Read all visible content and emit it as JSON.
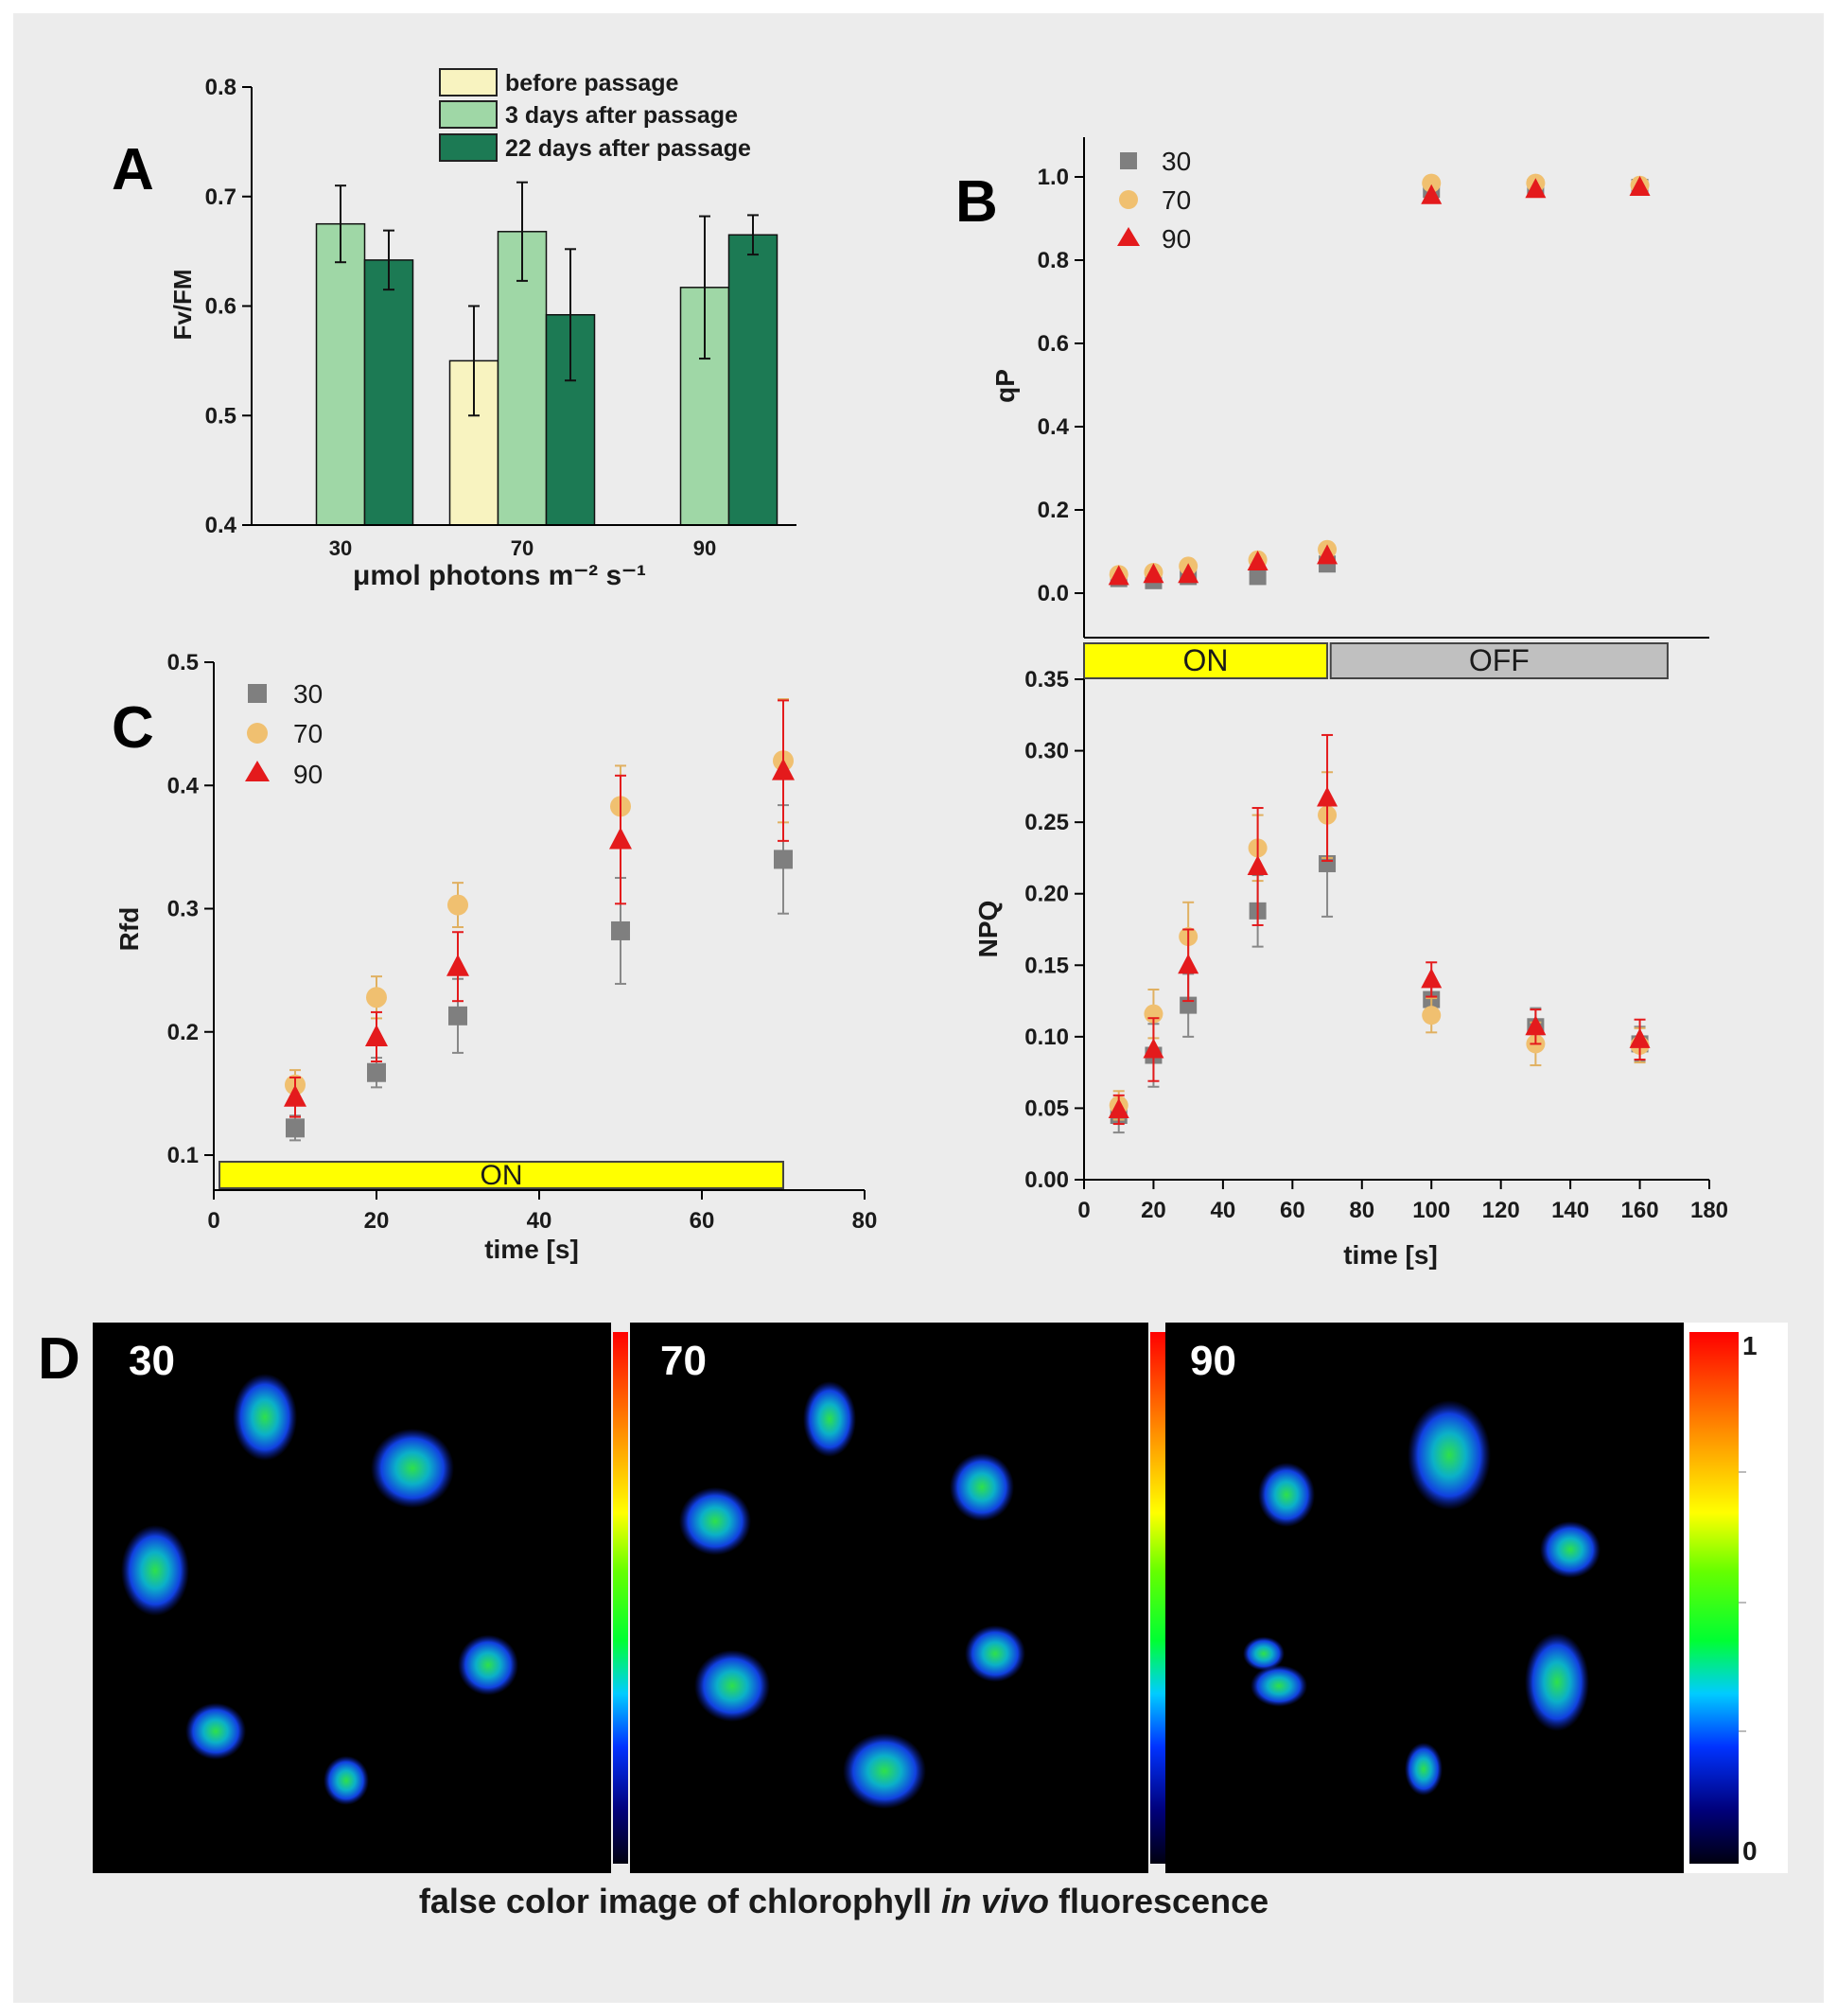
{
  "panel_labels": {
    "a": "A",
    "b": "B",
    "c": "C",
    "d": "D"
  },
  "colors": {
    "before": "#f8f3c0",
    "after3": "#9fd7a6",
    "after22": "#1c7a54",
    "s30": "#7f7f7f",
    "s70": "#f0c070",
    "s90": "#e41a1c",
    "on_bar": "#ffff00",
    "off_bar": "#c0c0c0"
  },
  "chart_data": [
    {
      "id": "A",
      "type": "bar",
      "categories": [
        "30",
        "70",
        "90"
      ],
      "series": [
        {
          "name": "before passage",
          "values": [
            null,
            0.55,
            null
          ],
          "errors": [
            null,
            0.05,
            null
          ]
        },
        {
          "name": "3 days after passage",
          "values": [
            0.675,
            0.668,
            0.617
          ],
          "errors": [
            0.035,
            0.045,
            0.065
          ]
        },
        {
          "name": "22 days after passage",
          "values": [
            0.642,
            0.592,
            0.665
          ],
          "errors": [
            0.027,
            0.06,
            0.018
          ]
        }
      ],
      "ylabel": "Fv/FM",
      "xlabel": "μmol photons m⁻² s⁻¹",
      "ylim": [
        0.4,
        0.8
      ],
      "yticks": [
        "0.4",
        "0.5",
        "0.6",
        "0.7",
        "0.8"
      ],
      "legend": "top"
    },
    {
      "id": "B_qP",
      "type": "scatter",
      "series": [
        {
          "name": "30",
          "x": [
            10,
            20,
            30,
            50,
            70,
            100,
            130,
            160
          ],
          "y": [
            0.035,
            0.03,
            0.04,
            0.04,
            0.07,
            0.97,
            0.975,
            0.975
          ]
        },
        {
          "name": "70",
          "x": [
            10,
            20,
            30,
            50,
            70,
            100,
            130,
            160
          ],
          "y": [
            0.045,
            0.05,
            0.065,
            0.08,
            0.105,
            0.985,
            0.985,
            0.98
          ]
        },
        {
          "name": "90",
          "x": [
            10,
            20,
            30,
            50,
            70,
            100,
            130,
            160
          ],
          "y": [
            0.04,
            0.045,
            0.045,
            0.075,
            0.09,
            0.955,
            0.97,
            0.975
          ]
        }
      ],
      "ylabel": "qP",
      "xlim": [
        0,
        180
      ],
      "ylim": [
        -0.1,
        1.1
      ],
      "yticks": [
        "0.0",
        "0.2",
        "0.4",
        "0.6",
        "0.8",
        "1.0"
      ],
      "legend": "top-left"
    },
    {
      "id": "B_NPQ",
      "type": "scatter",
      "series": [
        {
          "name": "30",
          "x": [
            10,
            20,
            30,
            50,
            70,
            100,
            130,
            160
          ],
          "y": [
            0.045,
            0.087,
            0.122,
            0.188,
            0.221,
            0.126,
            0.107,
            0.095
          ],
          "err": [
            0.012,
            0.022,
            0.022,
            0.025,
            0.037,
            0.013,
            0.013,
            0.012
          ]
        },
        {
          "name": "70",
          "x": [
            10,
            20,
            30,
            50,
            70,
            100,
            130,
            160
          ],
          "y": [
            0.052,
            0.116,
            0.17,
            0.232,
            0.255,
            0.115,
            0.095,
            0.094
          ],
          "err": [
            0.01,
            0.017,
            0.024,
            0.023,
            0.03,
            0.012,
            0.015,
            0.012
          ]
        },
        {
          "name": "90",
          "x": [
            10,
            20,
            30,
            50,
            70,
            100,
            130,
            160
          ],
          "y": [
            0.049,
            0.091,
            0.15,
            0.219,
            0.267,
            0.14,
            0.107,
            0.098
          ],
          "err": [
            0.01,
            0.022,
            0.025,
            0.041,
            0.044,
            0.012,
            0.012,
            0.014
          ]
        }
      ],
      "ylabel": "NPQ",
      "xlabel": "time [s]",
      "xlim": [
        0,
        180
      ],
      "ylim": [
        0,
        0.35
      ],
      "xticks": [
        "0",
        "20",
        "40",
        "60",
        "80",
        "100",
        "120",
        "140",
        "160",
        "180"
      ],
      "yticks": [
        "0.00",
        "0.05",
        "0.10",
        "0.15",
        "0.20",
        "0.25",
        "0.30",
        "0.35"
      ],
      "bars": [
        {
          "label": "ON",
          "from": 0,
          "to": 70
        },
        {
          "label": "OFF",
          "from": 71,
          "to": 168
        }
      ]
    },
    {
      "id": "C",
      "type": "scatter",
      "series": [
        {
          "name": "30",
          "x": [
            10,
            20,
            30,
            50,
            70
          ],
          "y": [
            0.122,
            0.167,
            0.213,
            0.282,
            0.34
          ],
          "err": [
            0.01,
            0.012,
            0.03,
            0.043,
            0.044
          ]
        },
        {
          "name": "70",
          "x": [
            10,
            20,
            30,
            50,
            70
          ],
          "y": [
            0.157,
            0.228,
            0.303,
            0.383,
            0.42
          ],
          "err": [
            0.012,
            0.017,
            0.018,
            0.033,
            0.05
          ]
        },
        {
          "name": "90",
          "x": [
            10,
            20,
            30,
            50,
            70
          ],
          "y": [
            0.147,
            0.196,
            0.253,
            0.356,
            0.412
          ],
          "err": [
            0.016,
            0.02,
            0.028,
            0.052,
            0.057
          ]
        }
      ],
      "ylabel": "Rfd",
      "xlabel": "time [s]",
      "xlim": [
        0,
        80
      ],
      "ylim": [
        0.08,
        0.5
      ],
      "xticks": [
        "0",
        "20",
        "40",
        "60",
        "80"
      ],
      "yticks": [
        "0.1",
        "0.2",
        "0.3",
        "0.4",
        "0.5"
      ],
      "bars": [
        {
          "label": "ON",
          "from": 0,
          "to": 70
        }
      ],
      "legend": "top-left"
    }
  ],
  "panel_d": {
    "titles": [
      "30",
      "70",
      "90"
    ],
    "colorbar_max": "1",
    "colorbar_min": "0",
    "caption_pre": "false color image of chlorophyll ",
    "caption_em": "in vivo",
    "caption_post": " fluorescence"
  }
}
